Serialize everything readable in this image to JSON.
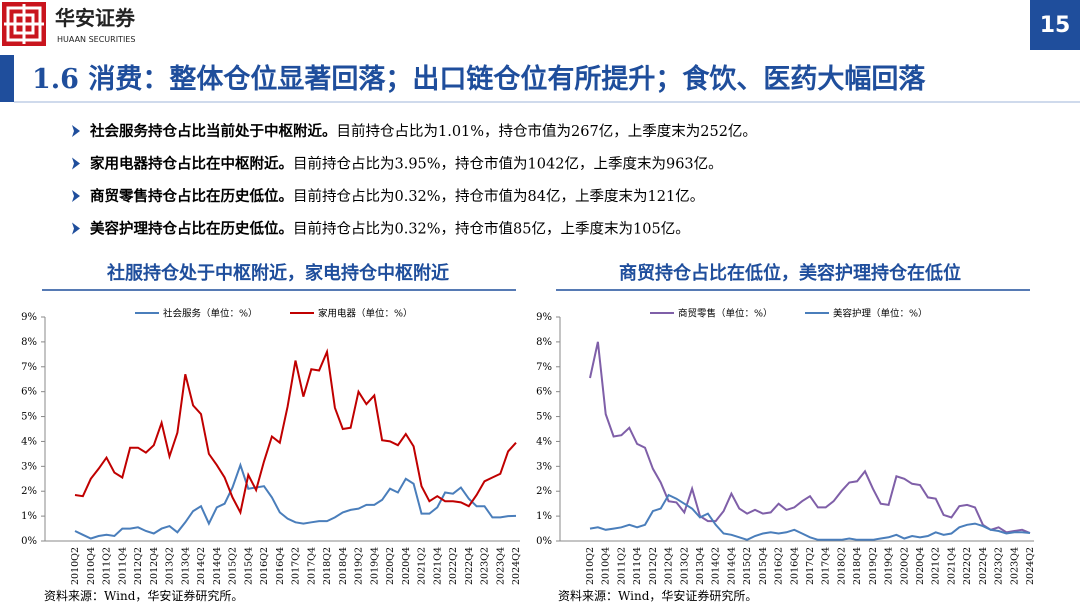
{
  "header": {
    "brand": "华安证券",
    "brand_en": "HUAAN SECURITIES",
    "page_number": "15",
    "title": "1.6 消费：整体仓位显著回落；出口链仓位有所提升；食饮、医药大幅回落"
  },
  "bullets": [
    {
      "bold": "社会服务持仓占比当前处于中枢附近。",
      "text": "目前持仓占比为1.01%，持仓市值为267亿，上季度末为252亿。"
    },
    {
      "bold": "家用电器持仓占比在中枢附近。",
      "text": "目前持仓占比为3.95%，持仓市值为1042亿，上季度末为963亿。"
    },
    {
      "bold": "商贸零售持仓占比在历史低位。",
      "text": "目前持仓占比为0.32%，持仓市值为84亿，上季度末为121亿。"
    },
    {
      "bold": "美容护理持仓占比在历史低位。",
      "text": "目前持仓占比为0.32%，持仓市值85亿，上季度末为105亿。"
    }
  ],
  "panels": [
    {
      "heading": "社服持仓处于中枢附近，家电持仓中枢附近",
      "source": "资料来源：Wind，华安证券研究所。"
    },
    {
      "heading": "商贸持仓占比在低位，美容护理持仓在低位",
      "source": "资料来源：Wind，华安证券研究所。"
    }
  ],
  "chart_data": [
    {
      "type": "line",
      "categories": [
        "2010Q2",
        null,
        "2010Q4",
        null,
        "2011Q2",
        null,
        "2011Q4",
        null,
        "2012Q2",
        null,
        "2012Q4",
        null,
        "2013Q2",
        null,
        "2013Q4",
        null,
        "2014Q2",
        null,
        "2014Q4",
        null,
        "2015Q2",
        null,
        "2015Q4",
        null,
        "2016Q2",
        null,
        "2016Q4",
        null,
        "2017Q2",
        null,
        "2017Q4",
        null,
        "2018Q2",
        null,
        "2018Q4",
        null,
        "2019Q2",
        null,
        "2019Q4",
        null,
        "2020Q2",
        null,
        "2020Q4",
        null,
        "2021Q2",
        null,
        "2021Q4",
        null,
        "2022Q2",
        null,
        "2022Q4",
        null,
        "2023Q2",
        null,
        "2023Q4",
        null,
        "2024Q2"
      ],
      "series": [
        {
          "name": "社会服务（单位：%）",
          "color": "#4a7ebb",
          "values": [
            0.4,
            0.25,
            0.1,
            0.2,
            0.25,
            0.2,
            0.5,
            0.5,
            0.55,
            0.4,
            0.3,
            0.5,
            0.6,
            0.35,
            0.75,
            1.2,
            1.4,
            0.7,
            1.35,
            1.5,
            2.15,
            3.05,
            2.1,
            2.15,
            2.2,
            1.75,
            1.15,
            0.9,
            0.75,
            0.7,
            0.75,
            0.8,
            0.8,
            0.95,
            1.15,
            1.25,
            1.3,
            1.45,
            1.45,
            1.65,
            2.1,
            1.95,
            2.5,
            2.3,
            1.1,
            1.1,
            1.35,
            1.95,
            1.9,
            2.15,
            1.7,
            1.4,
            1.4,
            0.95,
            0.95,
            1.0,
            1.01
          ]
        },
        {
          "name": "家用电器（单位：%）",
          "color": "#c00000",
          "values": [
            1.85,
            1.8,
            2.5,
            2.9,
            3.35,
            2.75,
            2.55,
            3.75,
            3.75,
            3.55,
            3.85,
            4.75,
            3.4,
            4.35,
            6.7,
            5.45,
            5.1,
            3.5,
            3.05,
            2.55,
            1.75,
            1.15,
            2.65,
            2.05,
            3.2,
            4.2,
            3.95,
            5.4,
            7.25,
            5.8,
            6.9,
            6.85,
            7.6,
            5.35,
            4.5,
            4.55,
            6.0,
            5.5,
            5.85,
            4.05,
            4.0,
            3.85,
            4.3,
            3.8,
            2.2,
            1.6,
            1.8,
            1.6,
            1.6,
            1.55,
            1.4,
            1.85,
            2.4,
            2.55,
            2.7,
            3.6,
            3.95
          ]
        }
      ],
      "ylim": [
        0,
        9
      ],
      "yticks": [
        {
          "value": 0,
          "label": "0%"
        },
        {
          "value": 1,
          "label": "1%"
        },
        {
          "value": 2,
          "label": "2%"
        },
        {
          "value": 3,
          "label": "3%"
        },
        {
          "value": 4,
          "label": "4%"
        },
        {
          "value": 5,
          "label": "5%"
        },
        {
          "value": 6,
          "label": "6%"
        },
        {
          "value": 7,
          "label": "7%"
        },
        {
          "value": 8,
          "label": "8%"
        },
        {
          "value": 9,
          "label": "9%"
        }
      ],
      "legend": "top",
      "grid": false
    },
    {
      "type": "line",
      "categories": [
        "2010Q2",
        null,
        "2010Q4",
        null,
        "2011Q2",
        null,
        "2011Q4",
        null,
        "2012Q2",
        null,
        "2012Q4",
        null,
        "2013Q2",
        null,
        "2013Q4",
        null,
        "2014Q2",
        null,
        "2014Q4",
        null,
        "2015Q2",
        null,
        "2015Q4",
        null,
        "2016Q2",
        null,
        "2016Q4",
        null,
        "2017Q2",
        null,
        "2017Q4",
        null,
        "2018Q2",
        null,
        "2018Q4",
        null,
        "2019Q2",
        null,
        "2019Q4",
        null,
        "2020Q2",
        null,
        "2020Q4",
        null,
        "2021Q2",
        null,
        "2021Q4",
        null,
        "2022Q2",
        null,
        "2022Q4",
        null,
        "2023Q2",
        null,
        "2023Q4",
        null,
        "2024Q2"
      ],
      "series": [
        {
          "name": "商贸零售（单位：%）",
          "color": "#7f5fa8",
          "values": [
            6.55,
            8.0,
            5.1,
            4.2,
            4.25,
            4.55,
            3.9,
            3.75,
            2.9,
            2.35,
            1.6,
            1.55,
            1.15,
            2.1,
            1.0,
            0.8,
            0.8,
            1.2,
            1.9,
            1.3,
            1.1,
            1.25,
            1.1,
            1.15,
            1.5,
            1.25,
            1.35,
            1.6,
            1.8,
            1.35,
            1.35,
            1.6,
            2.0,
            2.35,
            2.4,
            2.8,
            2.1,
            1.5,
            1.45,
            2.6,
            2.5,
            2.3,
            2.25,
            1.75,
            1.7,
            1.05,
            0.95,
            1.4,
            1.45,
            1.35,
            0.65,
            0.45,
            0.55,
            0.35,
            0.4,
            0.45,
            0.32
          ]
        },
        {
          "name": "美容护理（单位：%）",
          "color": "#4a7ebb",
          "values": [
            0.5,
            0.55,
            0.45,
            0.5,
            0.55,
            0.65,
            0.55,
            0.65,
            1.2,
            1.3,
            1.85,
            1.7,
            1.5,
            1.3,
            0.95,
            1.1,
            0.65,
            0.3,
            0.25,
            0.15,
            0.05,
            0.2,
            0.3,
            0.35,
            0.3,
            0.35,
            0.45,
            0.3,
            0.15,
            0.05,
            0.05,
            0.05,
            0.05,
            0.1,
            0.05,
            0.05,
            0.05,
            0.1,
            0.15,
            0.25,
            0.1,
            0.2,
            0.15,
            0.2,
            0.35,
            0.25,
            0.3,
            0.55,
            0.65,
            0.7,
            0.6,
            0.45,
            0.4,
            0.3,
            0.35,
            0.35,
            0.32
          ]
        }
      ],
      "ylim": [
        0,
        9
      ],
      "yticks": [
        {
          "value": 0,
          "label": "0%"
        },
        {
          "value": 1,
          "label": "1%"
        },
        {
          "value": 2,
          "label": "2%"
        },
        {
          "value": 3,
          "label": "3%"
        },
        {
          "value": 4,
          "label": "4%"
        },
        {
          "value": 5,
          "label": "5%"
        },
        {
          "value": 6,
          "label": "6%"
        },
        {
          "value": 7,
          "label": "7%"
        },
        {
          "value": 8,
          "label": "8%"
        },
        {
          "value": 9,
          "label": "9%"
        }
      ],
      "legend": "top",
      "grid": false
    }
  ]
}
